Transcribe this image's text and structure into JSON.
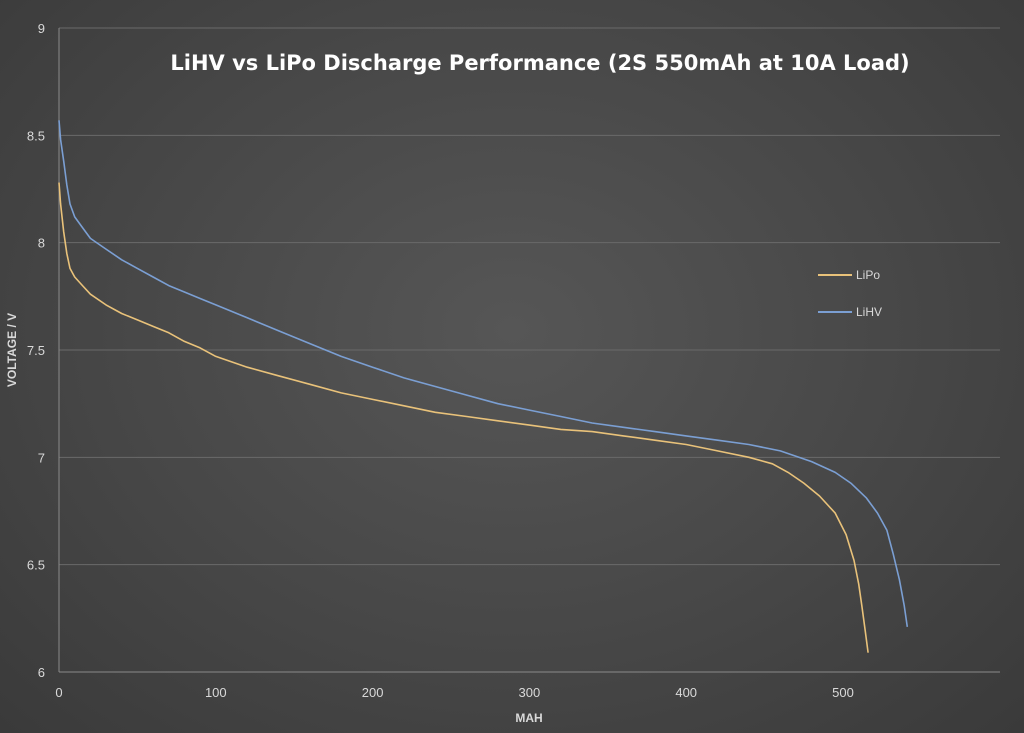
{
  "chart_data": {
    "type": "line",
    "title": "LiHV vs LiPo Discharge Performance (2S 550mAh at 10A Load)",
    "xlabel": "MAH",
    "ylabel": "VOLTAGE / V",
    "xlim": [
      0,
      600
    ],
    "ylim": [
      6,
      9
    ],
    "xticks": [
      "0",
      "100",
      "200",
      "300",
      "400",
      "500"
    ],
    "yticks": [
      "6",
      "6.5",
      "7",
      "7.5",
      "8",
      "8.5",
      "9"
    ],
    "grid": true,
    "legend_position": "right",
    "series": [
      {
        "name": "LiPo",
        "color": "#e9c27a",
        "x": [
          0,
          1,
          3,
          5,
          7,
          10,
          15,
          20,
          30,
          40,
          50,
          60,
          70,
          80,
          90,
          100,
          120,
          140,
          160,
          180,
          200,
          220,
          240,
          260,
          280,
          300,
          320,
          340,
          360,
          380,
          400,
          420,
          440,
          455,
          465,
          475,
          485,
          495,
          502,
          507,
          510,
          512,
          514,
          516
        ],
        "y": [
          8.28,
          8.18,
          8.05,
          7.95,
          7.88,
          7.84,
          7.8,
          7.76,
          7.71,
          7.67,
          7.64,
          7.61,
          7.58,
          7.54,
          7.51,
          7.47,
          7.42,
          7.38,
          7.34,
          7.3,
          7.27,
          7.24,
          7.21,
          7.19,
          7.17,
          7.15,
          7.13,
          7.12,
          7.1,
          7.08,
          7.06,
          7.03,
          7.0,
          6.97,
          6.93,
          6.88,
          6.82,
          6.74,
          6.64,
          6.52,
          6.41,
          6.31,
          6.2,
          6.09
        ]
      },
      {
        "name": "LiHV",
        "color": "#7b9fd3",
        "x": [
          0,
          1,
          3,
          5,
          7,
          10,
          15,
          20,
          30,
          40,
          50,
          60,
          70,
          80,
          90,
          100,
          120,
          140,
          160,
          180,
          200,
          220,
          240,
          260,
          280,
          300,
          320,
          340,
          360,
          380,
          400,
          420,
          440,
          460,
          480,
          495,
          505,
          515,
          522,
          528,
          532,
          536,
          539,
          541
        ],
        "y": [
          8.57,
          8.48,
          8.38,
          8.27,
          8.18,
          8.12,
          8.07,
          8.02,
          7.97,
          7.92,
          7.88,
          7.84,
          7.8,
          7.77,
          7.74,
          7.71,
          7.65,
          7.59,
          7.53,
          7.47,
          7.42,
          7.37,
          7.33,
          7.29,
          7.25,
          7.22,
          7.19,
          7.16,
          7.14,
          7.12,
          7.1,
          7.08,
          7.06,
          7.03,
          6.98,
          6.93,
          6.88,
          6.81,
          6.74,
          6.66,
          6.55,
          6.43,
          6.31,
          6.21
        ]
      }
    ]
  }
}
